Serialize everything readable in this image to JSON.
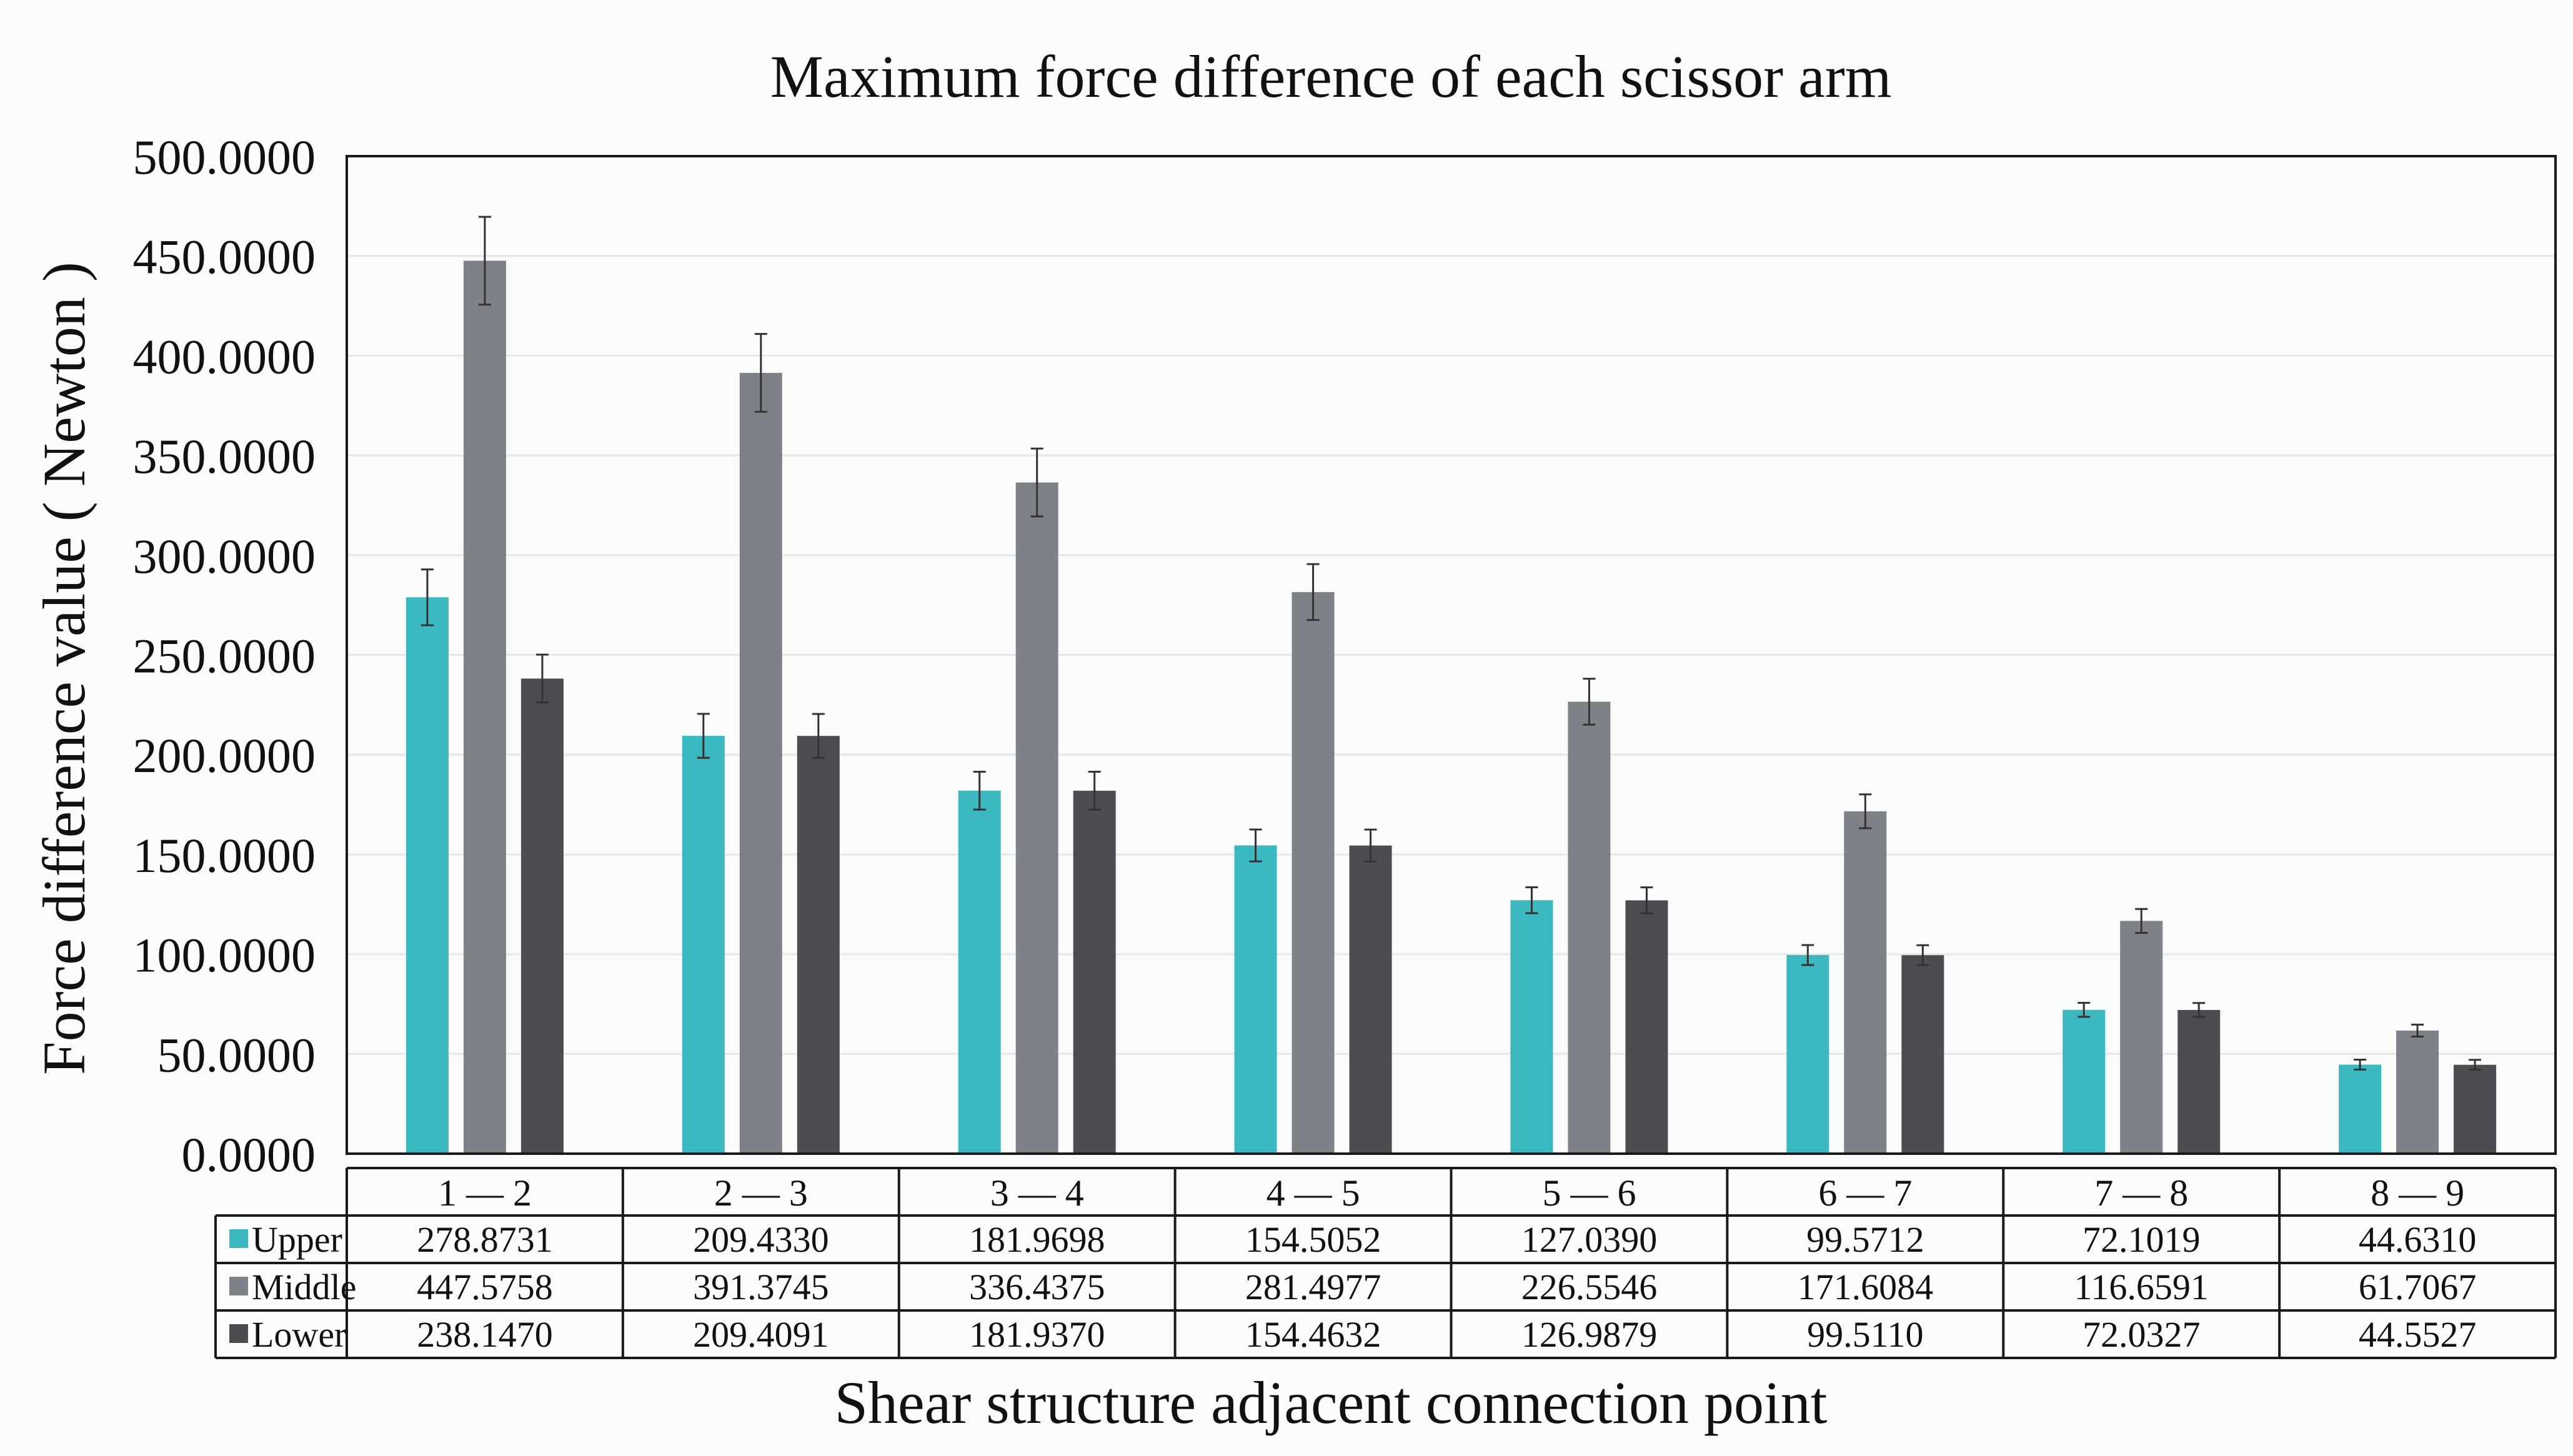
{
  "chart_data": {
    "type": "bar",
    "title": "Maximum force difference of each scissor arm",
    "xlabel": "Shear structure adjacent connection point",
    "ylabel": "Force difference value ( Newton )",
    "ylim": [
      0,
      500
    ],
    "yticks": [
      "0.0000",
      "50.0000",
      "100.0000",
      "150.0000",
      "200.0000",
      "250.0000",
      "300.0000",
      "350.0000",
      "400.0000",
      "450.0000",
      "500.0000"
    ],
    "grid": true,
    "categories": [
      "1 — 2",
      "2 — 3",
      "3 — 4",
      "4 — 5",
      "5 — 6",
      "6 — 7",
      "7 — 8",
      "8 — 9"
    ],
    "series": [
      {
        "name": "Upper",
        "color": "#3bb8c0",
        "values": [
          278.8731,
          209.433,
          181.9698,
          154.5052,
          127.039,
          99.5712,
          72.1019,
          44.631
        ],
        "labels": [
          "278.8731",
          "209.4330",
          "181.9698",
          "154.5052",
          "127.0390",
          "99.5712",
          "72.1019",
          "44.6310"
        ],
        "errors": [
          14,
          11,
          9.5,
          8,
          6.5,
          5,
          3.5,
          2.5
        ]
      },
      {
        "name": "Middle",
        "color": "#7f8189",
        "values": [
          447.5758,
          391.3745,
          336.4375,
          281.4977,
          226.5546,
          171.6084,
          116.6591,
          61.7067
        ],
        "labels": [
          "447.5758",
          "391.3745",
          "336.4375",
          "281.4977",
          "226.5546",
          "171.6084",
          "116.6591",
          "61.7067"
        ],
        "errors": [
          22,
          19.5,
          17,
          14,
          11.5,
          8.5,
          6,
          3
        ]
      },
      {
        "name": "Lower",
        "color": "#4c4d52",
        "values": [
          238.147,
          209.4091,
          181.937,
          154.4632,
          126.9879,
          99.511,
          72.0327,
          44.5527
        ],
        "labels": [
          "238.1470",
          "209.4091",
          "181.9370",
          "154.4632",
          "126.9879",
          "99.5110",
          "72.0327",
          "44.5527"
        ],
        "errors": [
          12,
          11,
          9.5,
          8,
          6.5,
          5,
          3.5,
          2.5
        ]
      }
    ]
  }
}
